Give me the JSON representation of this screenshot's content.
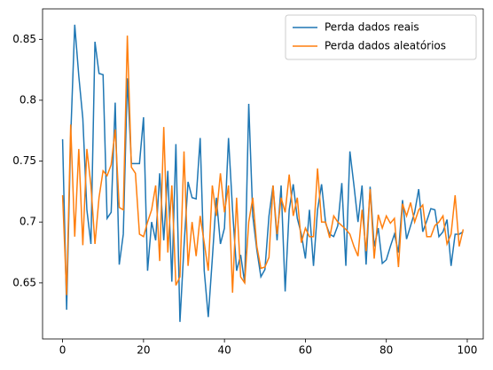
{
  "chart_data": {
    "type": "line",
    "x": [
      0,
      1,
      2,
      3,
      4,
      5,
      6,
      7,
      8,
      9,
      10,
      11,
      12,
      13,
      14,
      15,
      16,
      17,
      18,
      19,
      20,
      21,
      22,
      23,
      24,
      25,
      26,
      27,
      28,
      29,
      30,
      31,
      32,
      33,
      34,
      35,
      36,
      37,
      38,
      39,
      40,
      41,
      42,
      43,
      44,
      45,
      46,
      47,
      48,
      49,
      50,
      51,
      52,
      53,
      54,
      55,
      56,
      57,
      58,
      59,
      60,
      61,
      62,
      63,
      64,
      65,
      66,
      67,
      68,
      69,
      70,
      71,
      72,
      73,
      74,
      75,
      76,
      77,
      78,
      79,
      80,
      81,
      82,
      83,
      84,
      85,
      86,
      87,
      88,
      89,
      90,
      91,
      92,
      93,
      94,
      95,
      96,
      97,
      98,
      99
    ],
    "series": [
      {
        "name": "Perda dados reais",
        "color": "#1f77b4",
        "values": [
          0.768,
          0.628,
          0.77,
          0.862,
          0.82,
          0.785,
          0.71,
          0.682,
          0.848,
          0.822,
          0.821,
          0.703,
          0.708,
          0.798,
          0.665,
          0.69,
          0.818,
          0.748,
          0.748,
          0.748,
          0.786,
          0.66,
          0.7,
          0.685,
          0.74,
          0.685,
          0.742,
          0.651,
          0.764,
          0.618,
          0.68,
          0.733,
          0.72,
          0.719,
          0.769,
          0.66,
          0.622,
          0.67,
          0.72,
          0.682,
          0.695,
          0.769,
          0.71,
          0.66,
          0.673,
          0.65,
          0.797,
          0.705,
          0.677,
          0.655,
          0.661,
          0.705,
          0.73,
          0.685,
          0.73,
          0.643,
          0.71,
          0.731,
          0.703,
          0.69,
          0.67,
          0.71,
          0.664,
          0.71,
          0.731,
          0.699,
          0.69,
          0.688,
          0.697,
          0.732,
          0.664,
          0.758,
          0.73,
          0.7,
          0.73,
          0.665,
          0.729,
          0.68,
          0.695,
          0.666,
          0.669,
          0.68,
          0.69,
          0.675,
          0.718,
          0.686,
          0.697,
          0.708,
          0.727,
          0.692,
          0.701,
          0.711,
          0.71,
          0.688,
          0.692,
          0.702,
          0.664,
          0.69,
          0.69,
          0.692
        ]
      },
      {
        "name": "Perda dados aleatórios",
        "color": "#ff7f0e",
        "values": [
          0.722,
          0.64,
          0.78,
          0.688,
          0.76,
          0.681,
          0.76,
          0.73,
          0.682,
          0.72,
          0.742,
          0.738,
          0.747,
          0.776,
          0.712,
          0.71,
          0.853,
          0.745,
          0.74,
          0.69,
          0.688,
          0.7,
          0.71,
          0.73,
          0.668,
          0.778,
          0.675,
          0.73,
          0.648,
          0.655,
          0.758,
          0.664,
          0.7,
          0.672,
          0.705,
          0.683,
          0.66,
          0.73,
          0.705,
          0.74,
          0.708,
          0.73,
          0.642,
          0.72,
          0.655,
          0.65,
          0.7,
          0.72,
          0.68,
          0.662,
          0.663,
          0.671,
          0.73,
          0.69,
          0.72,
          0.708,
          0.739,
          0.705,
          0.72,
          0.683,
          0.695,
          0.688,
          0.688,
          0.744,
          0.7,
          0.7,
          0.687,
          0.705,
          0.7,
          0.697,
          0.694,
          0.69,
          0.68,
          0.672,
          0.71,
          0.676,
          0.727,
          0.67,
          0.706,
          0.695,
          0.705,
          0.699,
          0.703,
          0.663,
          0.715,
          0.705,
          0.716,
          0.7,
          0.71,
          0.714,
          0.688,
          0.688,
          0.697,
          0.7,
          0.705,
          0.682,
          0.69,
          0.722,
          0.68,
          0.694
        ]
      }
    ],
    "xlim": [
      -4.95,
      103.95
    ],
    "xticks": [
      0,
      20,
      40,
      60,
      80,
      100
    ],
    "ylim": [
      0.604,
      0.875
    ],
    "yticks": [
      0.65,
      0.7,
      0.75,
      0.8,
      0.85
    ],
    "legend": "upper right"
  }
}
